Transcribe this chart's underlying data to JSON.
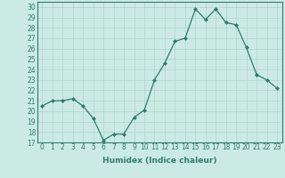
{
  "x": [
    0,
    1,
    2,
    3,
    4,
    5,
    6,
    7,
    8,
    9,
    10,
    11,
    12,
    13,
    14,
    15,
    16,
    17,
    18,
    19,
    20,
    21,
    22,
    23
  ],
  "y": [
    20.5,
    21.0,
    21.0,
    21.2,
    20.5,
    19.3,
    17.2,
    17.8,
    17.8,
    19.4,
    20.1,
    23.0,
    24.6,
    26.7,
    27.0,
    29.8,
    28.8,
    29.8,
    28.5,
    28.3,
    26.1,
    23.5,
    23.0,
    22.2
  ],
  "line_color": "#2e7d6e",
  "marker": "D",
  "marker_size": 2.0,
  "bg_color": "#cceae4",
  "grid_color": "#afd4cc",
  "xlabel": "Humidex (Indice chaleur)",
  "xlim": [
    -0.5,
    23.5
  ],
  "ylim": [
    17,
    30.5
  ],
  "yticks": [
    17,
    18,
    19,
    20,
    21,
    22,
    23,
    24,
    25,
    26,
    27,
    28,
    29,
    30
  ],
  "xtick_labels": [
    "0",
    "1",
    "2",
    "3",
    "4",
    "5",
    "6",
    "7",
    "8",
    "9",
    "10",
    "11",
    "12",
    "13",
    "14",
    "15",
    "16",
    "17",
    "18",
    "19",
    "20",
    "21",
    "22",
    "23"
  ],
  "tick_fontsize": 5.5,
  "xlabel_fontsize": 6.5
}
